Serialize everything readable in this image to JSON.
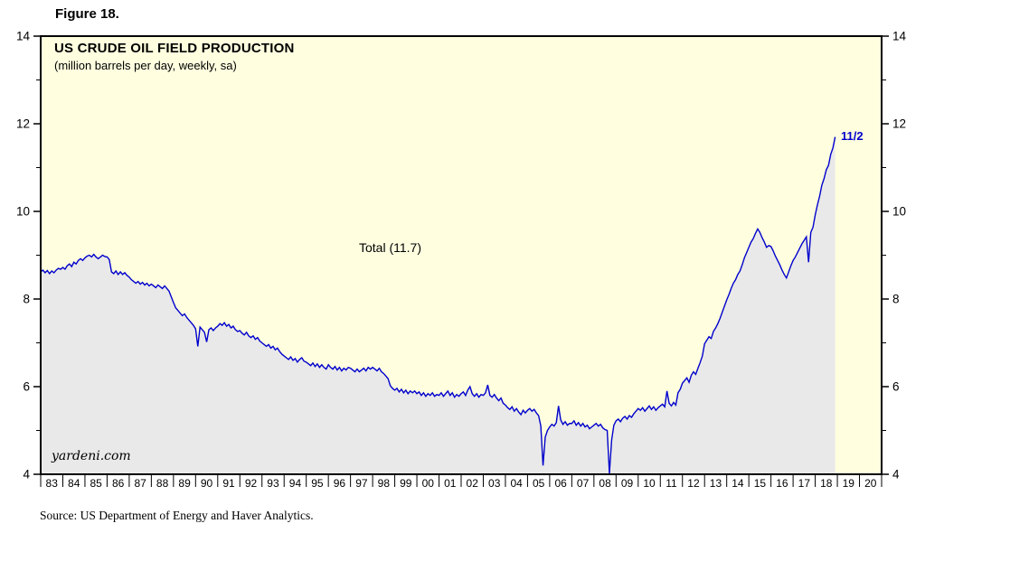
{
  "figure_label": "Figure 18.",
  "source": "Source: US Department of Energy and Haver Analytics.",
  "watermark": "yardeni.com",
  "chart_data": {
    "type": "line",
    "title": "US CRUDE OIL FIELD PRODUCTION",
    "subtitle": "(million barrels per day, weekly, sa)",
    "series_label": "Total (11.7)",
    "end_label": "11/2",
    "latest_value": 11.7,
    "xlabel": "",
    "ylabel": "million barrels per day",
    "xlim": [
      1983,
      2021
    ],
    "ylim": [
      4,
      14
    ],
    "yticks": [
      4,
      6,
      8,
      10,
      12,
      14
    ],
    "yticks_minor": [
      5,
      7,
      9,
      11,
      13
    ],
    "xtick_labels": [
      "83",
      "84",
      "85",
      "86",
      "87",
      "88",
      "89",
      "90",
      "91",
      "92",
      "93",
      "94",
      "95",
      "96",
      "97",
      "98",
      "99",
      "00",
      "01",
      "02",
      "03",
      "04",
      "05",
      "06",
      "07",
      "08",
      "09",
      "10",
      "11",
      "12",
      "13",
      "14",
      "15",
      "16",
      "17",
      "18",
      "19",
      "20"
    ],
    "grid": false,
    "legend_position": "none",
    "colors": {
      "background": "#ffffe0",
      "area_fill": "#e9e9e9",
      "line": "#0000cd",
      "frame": "#000000",
      "annotation_blue": "#0000cd"
    },
    "series": {
      "name": "Total US crude oil field production",
      "x_start": 1983.0,
      "x_step": 0.1,
      "values": [
        8.62,
        8.66,
        8.6,
        8.65,
        8.58,
        8.64,
        8.6,
        8.66,
        8.7,
        8.68,
        8.72,
        8.68,
        8.76,
        8.8,
        8.74,
        8.84,
        8.8,
        8.88,
        8.92,
        8.88,
        8.94,
        8.98,
        9.0,
        8.96,
        9.02,
        8.96,
        8.92,
        8.96,
        9.0,
        8.97,
        8.96,
        8.9,
        8.62,
        8.58,
        8.64,
        8.56,
        8.62,
        8.56,
        8.6,
        8.54,
        8.5,
        8.44,
        8.4,
        8.36,
        8.4,
        8.34,
        8.38,
        8.32,
        8.36,
        8.3,
        8.34,
        8.3,
        8.26,
        8.32,
        8.28,
        8.24,
        8.3,
        8.24,
        8.18,
        8.05,
        7.92,
        7.8,
        7.74,
        7.68,
        7.62,
        7.66,
        7.58,
        7.52,
        7.46,
        7.4,
        7.32,
        6.92,
        7.36,
        7.3,
        7.24,
        7.02,
        7.3,
        7.34,
        7.28,
        7.34,
        7.38,
        7.44,
        7.4,
        7.46,
        7.38,
        7.42,
        7.34,
        7.38,
        7.3,
        7.26,
        7.28,
        7.22,
        7.18,
        7.24,
        7.16,
        7.12,
        7.16,
        7.08,
        7.12,
        7.04,
        7.0,
        6.96,
        6.92,
        6.96,
        6.88,
        6.92,
        6.84,
        6.88,
        6.8,
        6.74,
        6.7,
        6.66,
        6.62,
        6.68,
        6.6,
        6.64,
        6.56,
        6.62,
        6.66,
        6.58,
        6.56,
        6.52,
        6.48,
        6.54,
        6.46,
        6.52,
        6.44,
        6.5,
        6.44,
        6.4,
        6.5,
        6.44,
        6.4,
        6.46,
        6.38,
        6.44,
        6.36,
        6.42,
        6.38,
        6.44,
        6.42,
        6.38,
        6.34,
        6.4,
        6.34,
        6.38,
        6.42,
        6.36,
        6.44,
        6.4,
        6.44,
        6.4,
        6.36,
        6.42,
        6.34,
        6.3,
        6.24,
        6.18,
        6.02,
        5.96,
        5.92,
        5.96,
        5.88,
        5.94,
        5.86,
        5.92,
        5.84,
        5.9,
        5.86,
        5.9,
        5.84,
        5.88,
        5.8,
        5.86,
        5.78,
        5.84,
        5.8,
        5.86,
        5.78,
        5.82,
        5.8,
        5.86,
        5.78,
        5.84,
        5.9,
        5.8,
        5.86,
        5.76,
        5.82,
        5.78,
        5.84,
        5.88,
        5.8,
        5.92,
        6.0,
        5.84,
        5.78,
        5.84,
        5.76,
        5.82,
        5.8,
        5.86,
        6.04,
        5.8,
        5.76,
        5.82,
        5.74,
        5.68,
        5.74,
        5.62,
        5.58,
        5.52,
        5.48,
        5.54,
        5.44,
        5.5,
        5.42,
        5.36,
        5.46,
        5.4,
        5.46,
        5.5,
        5.44,
        5.48,
        5.4,
        5.34,
        5.1,
        4.2,
        4.85,
        5.0,
        5.08,
        5.14,
        5.1,
        5.18,
        5.56,
        5.24,
        5.14,
        5.2,
        5.12,
        5.16,
        5.16,
        5.22,
        5.12,
        5.18,
        5.1,
        5.16,
        5.08,
        5.12,
        5.04,
        5.08,
        5.12,
        5.16,
        5.1,
        5.14,
        5.06,
        5.02,
        5.0,
        4.02,
        4.78,
        5.12,
        5.22,
        5.26,
        5.2,
        5.28,
        5.32,
        5.26,
        5.34,
        5.3,
        5.38,
        5.44,
        5.5,
        5.46,
        5.52,
        5.44,
        5.5,
        5.56,
        5.48,
        5.54,
        5.46,
        5.52,
        5.56,
        5.6,
        5.54,
        5.9,
        5.62,
        5.56,
        5.64,
        5.58,
        5.86,
        5.94,
        6.08,
        6.14,
        6.2,
        6.1,
        6.26,
        6.34,
        6.28,
        6.42,
        6.55,
        6.7,
        6.98,
        7.06,
        7.14,
        7.1,
        7.26,
        7.34,
        7.44,
        7.56,
        7.7,
        7.84,
        7.98,
        8.1,
        8.24,
        8.36,
        8.44,
        8.56,
        8.64,
        8.78,
        8.94,
        9.06,
        9.18,
        9.3,
        9.38,
        9.5,
        9.6,
        9.52,
        9.4,
        9.3,
        9.18,
        9.22,
        9.2,
        9.1,
        8.98,
        8.88,
        8.78,
        8.66,
        8.56,
        8.48,
        8.62,
        8.76,
        8.88,
        8.96,
        9.06,
        9.16,
        9.26,
        9.34,
        9.42,
        8.84,
        9.52,
        9.64,
        9.92,
        10.15,
        10.35,
        10.6,
        10.75,
        10.95,
        11.05,
        11.3,
        11.45,
        11.7
      ]
    }
  }
}
